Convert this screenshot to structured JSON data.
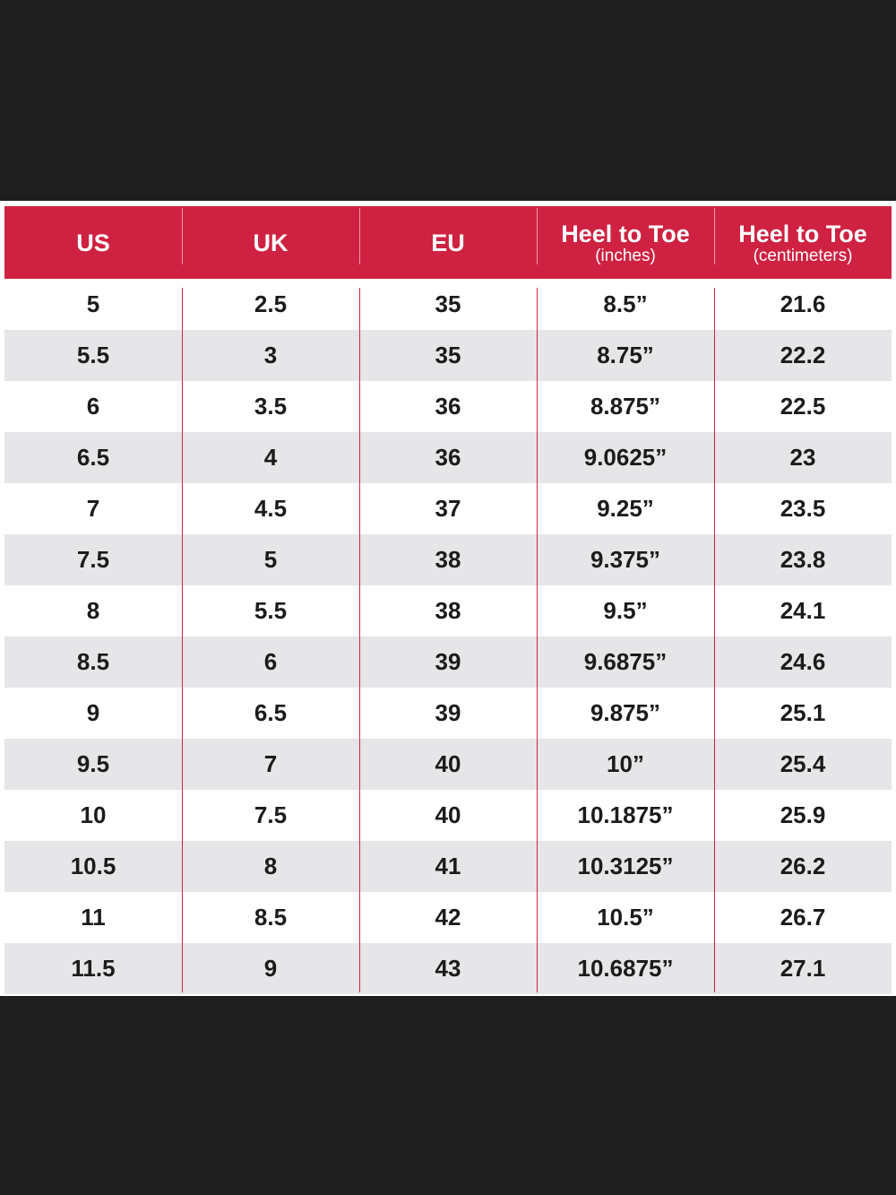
{
  "headers": [
    {
      "title": "US",
      "subtitle": ""
    },
    {
      "title": "UK",
      "subtitle": ""
    },
    {
      "title": "EU",
      "subtitle": ""
    },
    {
      "title": "Heel to Toe",
      "subtitle": "(inches)"
    },
    {
      "title": "Heel to Toe",
      "subtitle": "(centimeters)"
    }
  ],
  "rows": [
    [
      "5",
      "2.5",
      "35",
      "8.5”",
      "21.6"
    ],
    [
      "5.5",
      "3",
      "35",
      "8.75”",
      "22.2"
    ],
    [
      "6",
      "3.5",
      "36",
      "8.875”",
      "22.5"
    ],
    [
      "6.5",
      "4",
      "36",
      "9.0625”",
      "23"
    ],
    [
      "7",
      "4.5",
      "37",
      "9.25”",
      "23.5"
    ],
    [
      "7.5",
      "5",
      "38",
      "9.375”",
      "23.8"
    ],
    [
      "8",
      "5.5",
      "38",
      "9.5”",
      "24.1"
    ],
    [
      "8.5",
      "6",
      "39",
      "9.6875”",
      "24.6"
    ],
    [
      "9",
      "6.5",
      "39",
      "9.875”",
      "25.1"
    ],
    [
      "9.5",
      "7",
      "40",
      "10”",
      "25.4"
    ],
    [
      "10",
      "7.5",
      "40",
      "10.1875”",
      "25.9"
    ],
    [
      "10.5",
      "8",
      "41",
      "10.3125”",
      "26.2"
    ],
    [
      "11",
      "8.5",
      "42",
      "10.5”",
      "26.7"
    ],
    [
      "11.5",
      "9",
      "43",
      "10.6875”",
      "27.1"
    ]
  ],
  "colors": {
    "header_bg": "#cf2141",
    "row_alt_bg": "#e6e6e9",
    "page_bg": "#1e1e1e"
  }
}
